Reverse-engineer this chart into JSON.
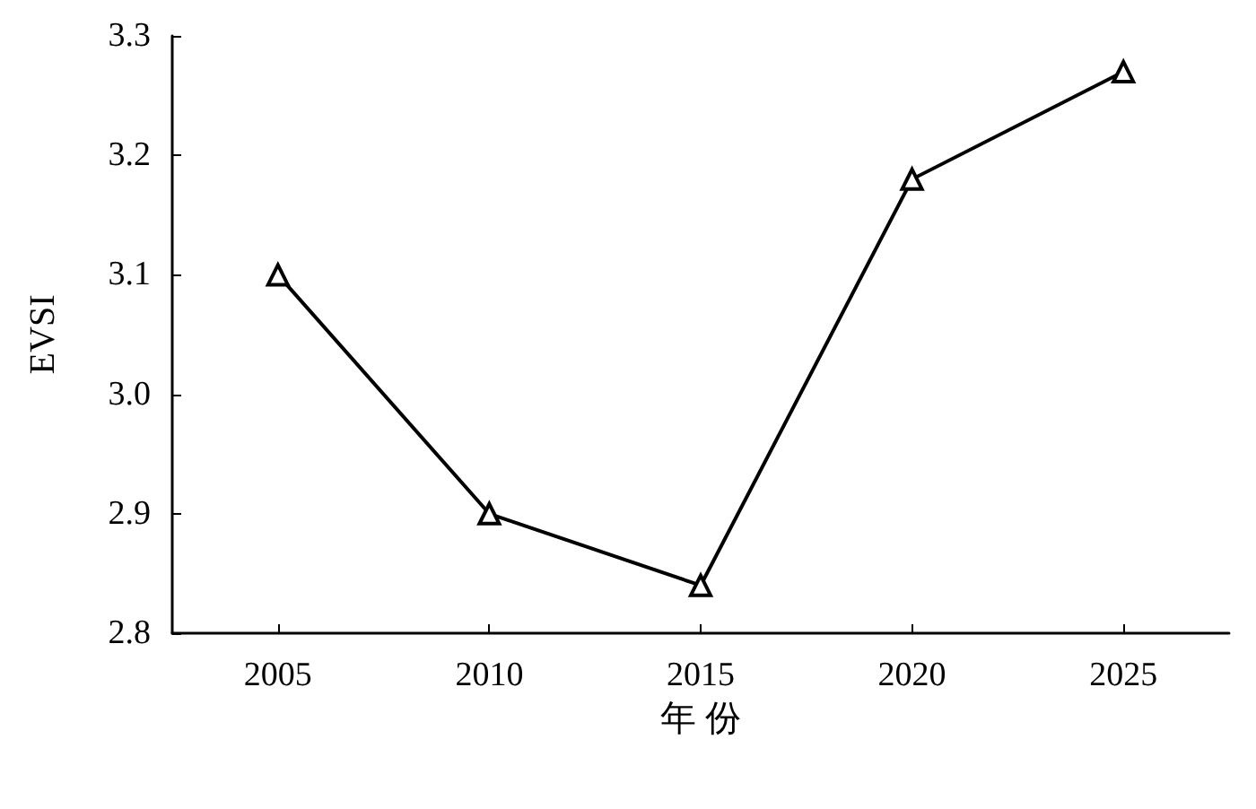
{
  "chart_data": {
    "type": "line",
    "xlabel": "年 份",
    "ylabel": "EVSI",
    "categories": [
      "2005",
      "2010",
      "2015",
      "2020",
      "2025"
    ],
    "series": [
      {
        "color": "#000000",
        "values": [
          3.1,
          2.9,
          2.84,
          3.18,
          3.27
        ]
      }
    ],
    "ylim": [
      2.8,
      3.3
    ],
    "yticks": [
      2.8,
      2.9,
      {
        "value": 3,
        "label": "3.0"
      },
      3.1,
      3.2,
      3.3
    ],
    "grid": false,
    "marker": "triangle",
    "line_style": "solid"
  }
}
